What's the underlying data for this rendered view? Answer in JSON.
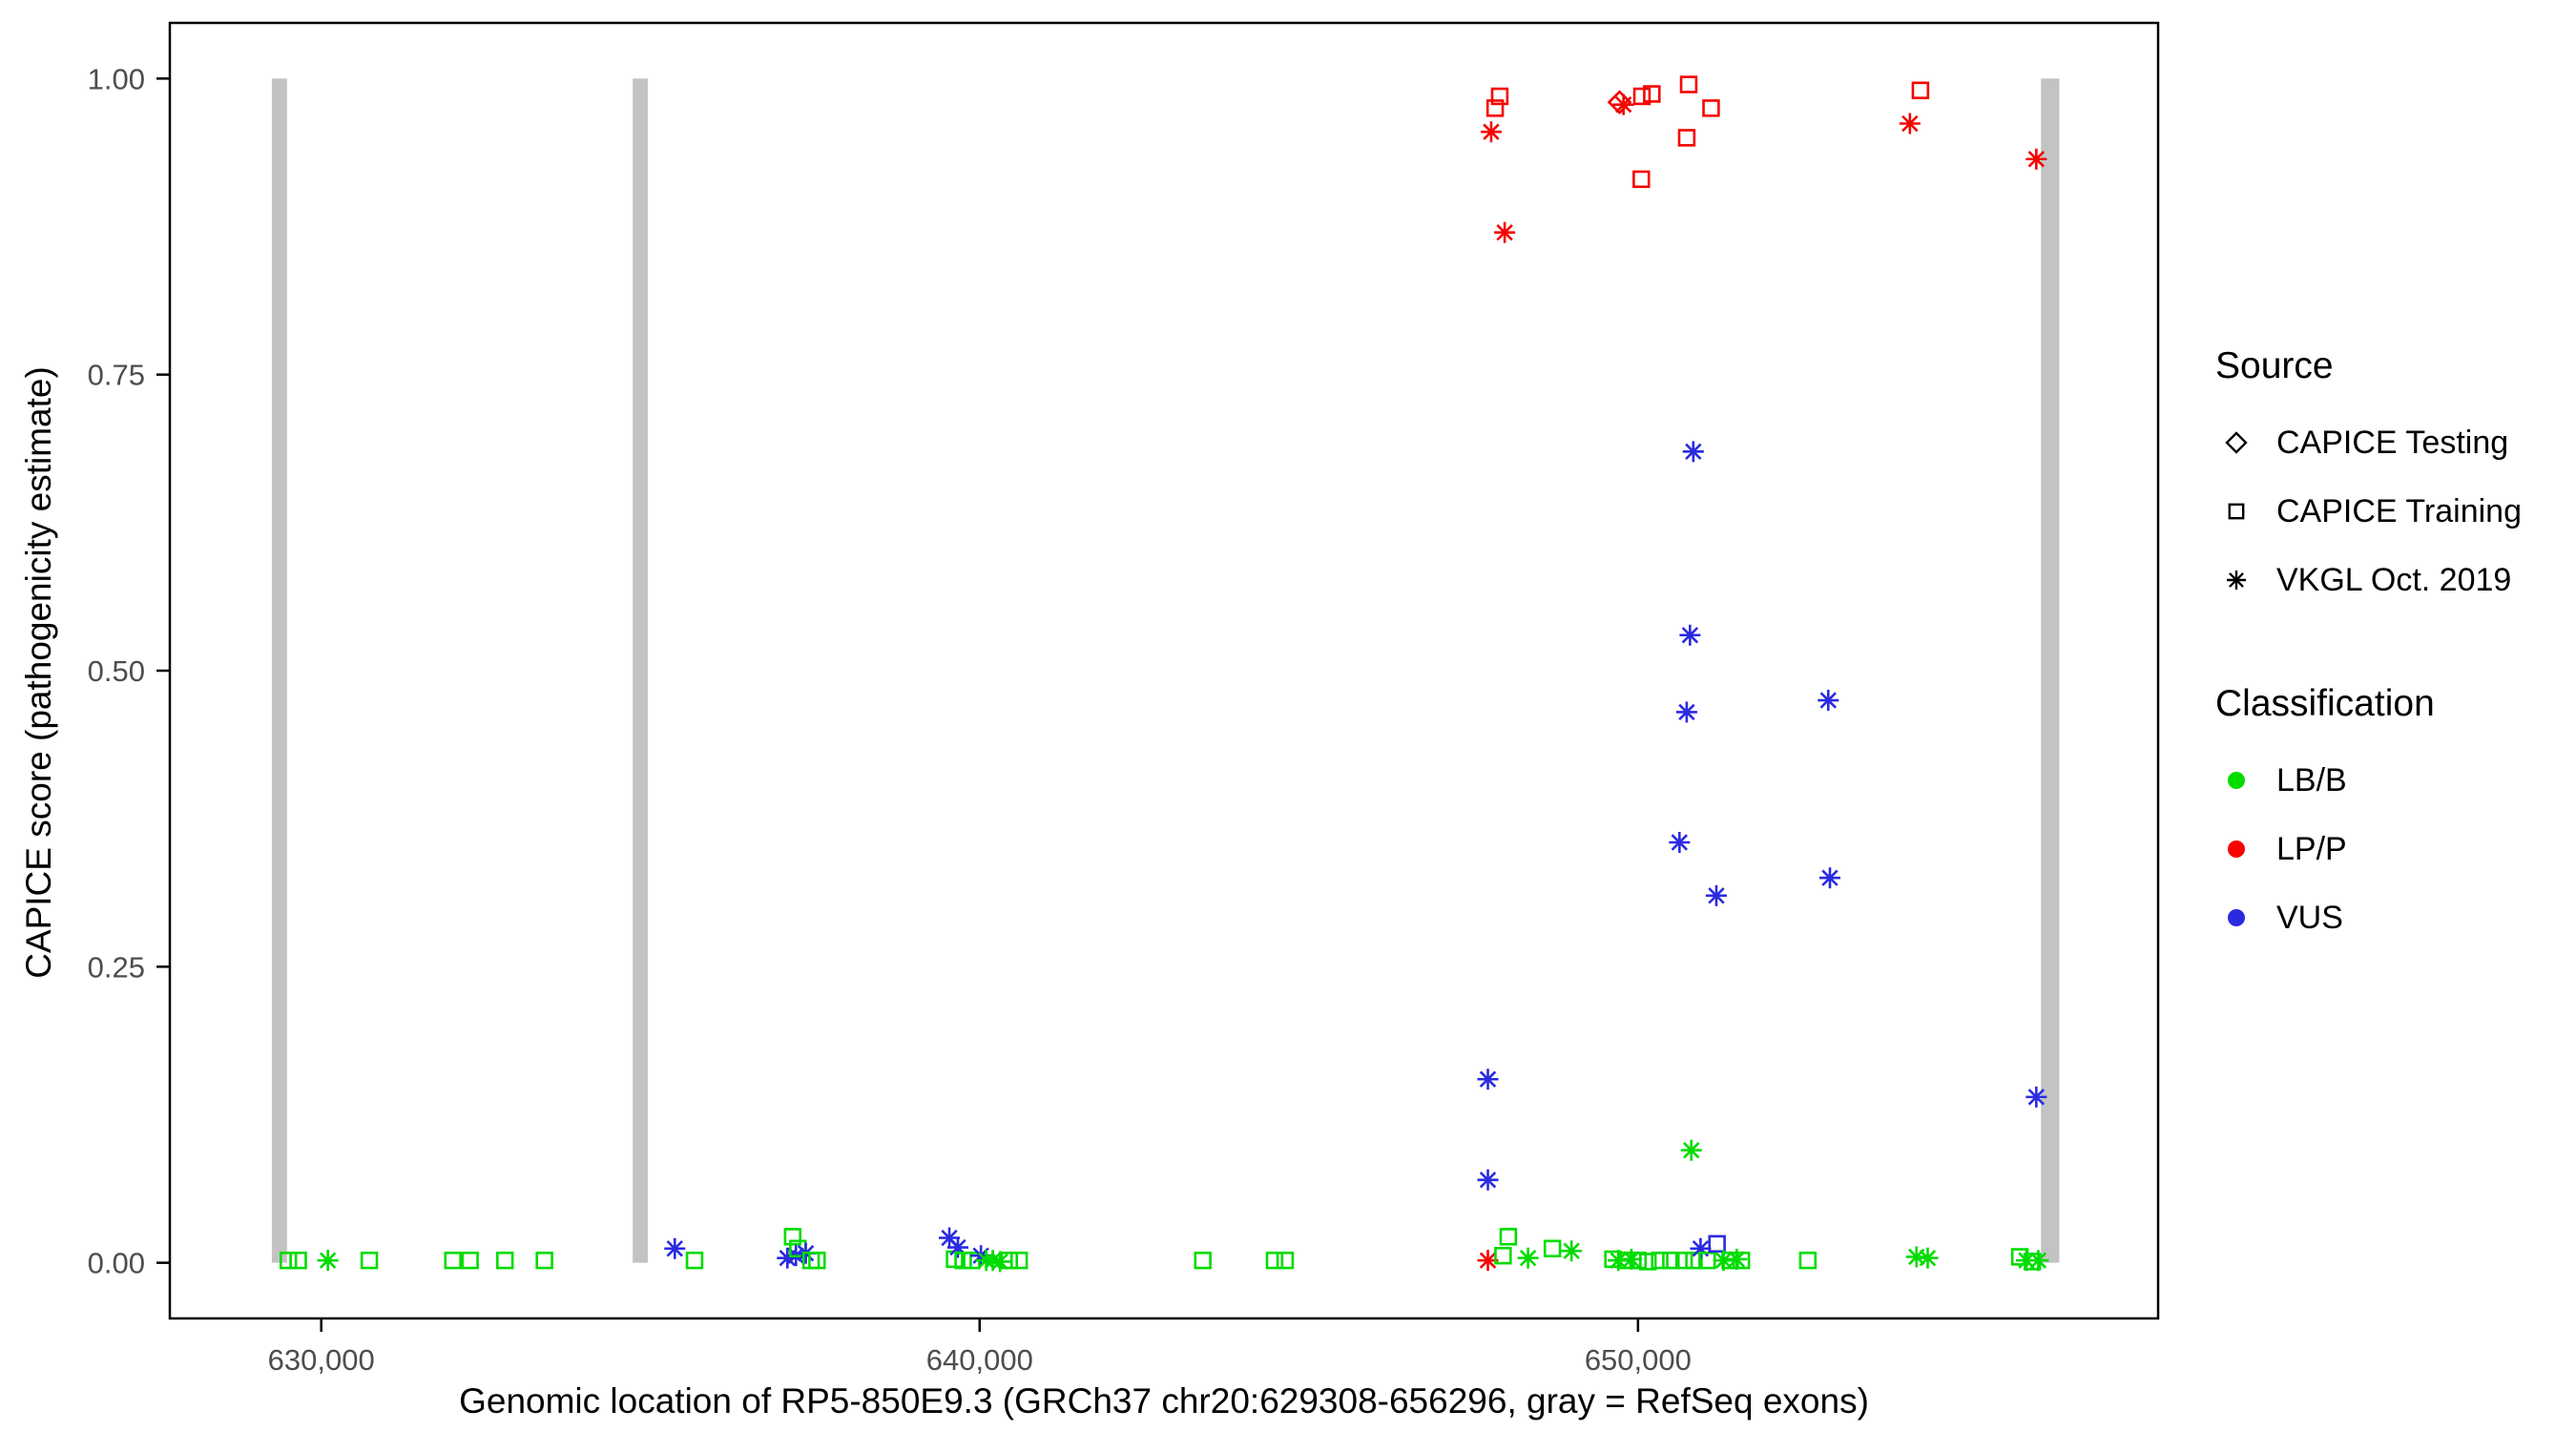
{
  "chart_data": {
    "type": "scatter",
    "title": "",
    "xlabel": "Genomic location of RP5-850E9.3 (GRCh37 chr20:629308-656296, gray = RefSeq exons)",
    "ylabel": "CAPICE score (pathogenicity estimate)",
    "xlim": [
      627700,
      657900
    ],
    "ylim": [
      -0.047,
      1.047
    ],
    "grid": false,
    "x_ticks": [
      {
        "value": 630000,
        "label": "630,000"
      },
      {
        "value": 640000,
        "label": "640,000"
      },
      {
        "value": 650000,
        "label": "650,000"
      }
    ],
    "y_ticks": [
      {
        "value": 0.0,
        "label": "0.00"
      },
      {
        "value": 0.25,
        "label": "0.25"
      },
      {
        "value": 0.5,
        "label": "0.50"
      },
      {
        "value": 0.75,
        "label": "0.75"
      },
      {
        "value": 1.0,
        "label": "1.00"
      }
    ],
    "colors": {
      "exon": "#C3C3C3",
      "tick_text": "#4D4D4D",
      "axis": "#000000"
    },
    "exons": [
      [
        629250,
        629480
      ],
      [
        634730,
        634960
      ],
      [
        656120,
        656400
      ]
    ],
    "legend": {
      "position": "right",
      "source_title": "Source",
      "sources": [
        {
          "label": "CAPICE Testing",
          "shape": "diamond"
        },
        {
          "label": "CAPICE Training",
          "shape": "square"
        },
        {
          "label": "VKGL Oct. 2019",
          "shape": "asterisk"
        }
      ],
      "classification_title": "Classification",
      "classes": [
        {
          "label": "LB/B",
          "color": "#00DC00"
        },
        {
          "label": "LP/P",
          "color": "#F50400"
        },
        {
          "label": "VUS",
          "color": "#2A2AE0"
        }
      ]
    },
    "point_fields": [
      "x",
      "y",
      "shape",
      "classification"
    ],
    "points": [
      [
        629500,
        0.002,
        "square",
        "LB/B"
      ],
      [
        629650,
        0.002,
        "square",
        "LB/B"
      ],
      [
        630100,
        0.002,
        "asterisk",
        "LB/B"
      ],
      [
        630730,
        0.002,
        "square",
        "LB/B"
      ],
      [
        632000,
        0.002,
        "square",
        "LB/B"
      ],
      [
        632260,
        0.002,
        "square",
        "LB/B"
      ],
      [
        632790,
        0.002,
        "square",
        "LB/B"
      ],
      [
        633390,
        0.002,
        "square",
        "LB/B"
      ],
      [
        635370,
        0.012,
        "asterisk",
        "VUS"
      ],
      [
        635670,
        0.002,
        "square",
        "LB/B"
      ],
      [
        637080,
        0.004,
        "asterisk",
        "VUS"
      ],
      [
        637160,
        0.022,
        "square",
        "LB/B"
      ],
      [
        637210,
        0.006,
        "asterisk",
        "VUS"
      ],
      [
        637240,
        0.012,
        "square",
        "LB/B"
      ],
      [
        637360,
        0.008,
        "asterisk",
        "VUS"
      ],
      [
        637440,
        0.002,
        "square",
        "LB/B"
      ],
      [
        637530,
        0.002,
        "square",
        "LB/B"
      ],
      [
        639540,
        0.021,
        "asterisk",
        "VUS"
      ],
      [
        639620,
        0.003,
        "square",
        "LB/B"
      ],
      [
        639670,
        0.013,
        "asterisk",
        "VUS"
      ],
      [
        639750,
        0.002,
        "square",
        "LB/B"
      ],
      [
        639880,
        0.002,
        "square",
        "LB/B"
      ],
      [
        640020,
        0.006,
        "asterisk",
        "VUS"
      ],
      [
        640100,
        0.002,
        "asterisk",
        "LB/B"
      ],
      [
        640200,
        0.002,
        "asterisk",
        "LB/B"
      ],
      [
        640310,
        0.001,
        "asterisk",
        "LB/B"
      ],
      [
        640450,
        0.002,
        "square",
        "LB/B"
      ],
      [
        640600,
        0.002,
        "square",
        "LB/B"
      ],
      [
        643390,
        0.002,
        "square",
        "LB/B"
      ],
      [
        644480,
        0.002,
        "square",
        "LB/B"
      ],
      [
        644640,
        0.002,
        "square",
        "LB/B"
      ],
      [
        647720,
        0.002,
        "asterisk",
        "LP/P"
      ],
      [
        647720,
        0.07,
        "asterisk",
        "VUS"
      ],
      [
        647720,
        0.155,
        "asterisk",
        "VUS"
      ],
      [
        647950,
        0.006,
        "square",
        "LB/B"
      ],
      [
        648030,
        0.022,
        "square",
        "LB/B"
      ],
      [
        648330,
        0.004,
        "asterisk",
        "LB/B"
      ],
      [
        648700,
        0.012,
        "square",
        "LB/B"
      ],
      [
        648990,
        0.01,
        "asterisk",
        "LB/B"
      ],
      [
        647770,
        0.955,
        "asterisk",
        "LP/P"
      ],
      [
        647830,
        0.975,
        "square",
        "LP/P"
      ],
      [
        647900,
        0.985,
        "square",
        "LP/P"
      ],
      [
        647975,
        0.87,
        "asterisk",
        "LP/P"
      ],
      [
        649720,
        0.98,
        "diamond",
        "LP/P"
      ],
      [
        649780,
        0.978,
        "asterisk",
        "LP/P"
      ],
      [
        650050,
        0.915,
        "square",
        "LP/P"
      ],
      [
        650060,
        0.985,
        "square",
        "LP/P"
      ],
      [
        650210,
        0.987,
        "square",
        "LP/P"
      ],
      [
        650740,
        0.95,
        "square",
        "LP/P"
      ],
      [
        650770,
        0.995,
        "square",
        "LP/P"
      ],
      [
        651110,
        0.975,
        "square",
        "LP/P"
      ],
      [
        654130,
        0.962,
        "asterisk",
        "LP/P"
      ],
      [
        654290,
        0.99,
        "square",
        "LP/P"
      ],
      [
        656050,
        0.932,
        "asterisk",
        "LP/P"
      ],
      [
        650840,
        0.685,
        "asterisk",
        "VUS"
      ],
      [
        650790,
        0.53,
        "asterisk",
        "VUS"
      ],
      [
        650740,
        0.465,
        "asterisk",
        "VUS"
      ],
      [
        650630,
        0.355,
        "asterisk",
        "VUS"
      ],
      [
        651190,
        0.31,
        "asterisk",
        "VUS"
      ],
      [
        652890,
        0.475,
        "asterisk",
        "VUS"
      ],
      [
        652915,
        0.325,
        "asterisk",
        "VUS"
      ],
      [
        656050,
        0.14,
        "asterisk",
        "VUS"
      ],
      [
        650810,
        0.095,
        "asterisk",
        "LB/B"
      ],
      [
        649620,
        0.003,
        "square",
        "LB/B"
      ],
      [
        649700,
        0.002,
        "asterisk",
        "LB/B"
      ],
      [
        649820,
        0.002,
        "square",
        "LB/B"
      ],
      [
        649900,
        0.003,
        "asterisk",
        "LB/B"
      ],
      [
        650000,
        0.002,
        "square",
        "LB/B"
      ],
      [
        650150,
        0.001,
        "square",
        "LB/B"
      ],
      [
        650330,
        0.002,
        "square",
        "LB/B"
      ],
      [
        650500,
        0.002,
        "square",
        "LB/B"
      ],
      [
        650700,
        0.002,
        "square",
        "LB/B"
      ],
      [
        650850,
        0.002,
        "square",
        "LB/B"
      ],
      [
        650950,
        0.012,
        "asterisk",
        "VUS"
      ],
      [
        651050,
        0.002,
        "square",
        "LB/B"
      ],
      [
        651200,
        0.016,
        "square",
        "VUS"
      ],
      [
        651300,
        0.002,
        "asterisk",
        "LB/B"
      ],
      [
        651400,
        0.002,
        "square",
        "LB/B"
      ],
      [
        651500,
        0.003,
        "asterisk",
        "LB/B"
      ],
      [
        651570,
        0.002,
        "square",
        "LB/B"
      ],
      [
        652580,
        0.002,
        "square",
        "LB/B"
      ],
      [
        654230,
        0.005,
        "asterisk",
        "LB/B"
      ],
      [
        654400,
        0.004,
        "asterisk",
        "LB/B"
      ],
      [
        655800,
        0.005,
        "square",
        "LB/B"
      ],
      [
        655900,
        0.002,
        "asterisk",
        "LB/B"
      ],
      [
        655990,
        0.001,
        "square",
        "LB/B"
      ],
      [
        656080,
        0.002,
        "asterisk",
        "LB/B"
      ]
    ]
  }
}
